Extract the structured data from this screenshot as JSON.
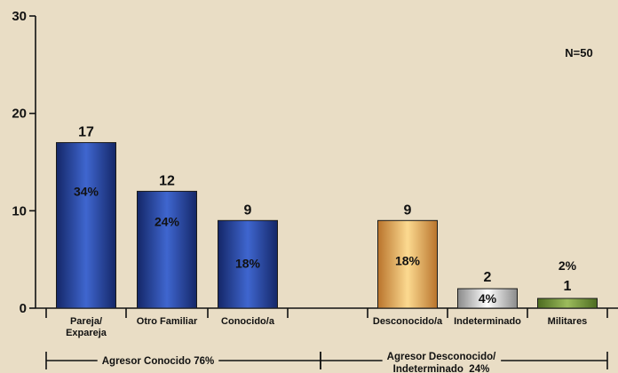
{
  "chart_data": {
    "type": "bar",
    "categories": [
      [
        "Pareja/",
        "Expareja"
      ],
      [
        "Otro Familiar"
      ],
      [
        "Conocido/a"
      ],
      [
        "Desconocido/a"
      ],
      [
        "Indeterminado"
      ],
      [
        "Militares"
      ]
    ],
    "values": [
      17,
      12,
      9,
      9,
      2,
      1
    ],
    "percent_labels": [
      "34%",
      "24%",
      "18%",
      "18%",
      "4%",
      "2%"
    ],
    "bar_colors": [
      {
        "edge": "#142768",
        "mid": "#3f66cf"
      },
      {
        "edge": "#142768",
        "mid": "#3f66cf"
      },
      {
        "edge": "#142768",
        "mid": "#3f66cf"
      },
      {
        "edge": "#b9742c",
        "mid": "#fcda90"
      },
      {
        "edge": "#8a8a8a",
        "mid": "#ffffff"
      },
      {
        "edge": "#4c6b20",
        "mid": "#9cbc5c"
      }
    ],
    "ylim": [
      0,
      30
    ],
    "yticks": [
      0,
      10,
      20,
      30
    ],
    "annotation": "N=50",
    "groups": [
      {
        "label": [
          "Agresor Conocido 76%"
        ]
      },
      {
        "label": [
          "Agresor Desconocido/",
          "Indeterminado  24%"
        ]
      }
    ],
    "grid": false,
    "background": "#e9ddc5"
  }
}
